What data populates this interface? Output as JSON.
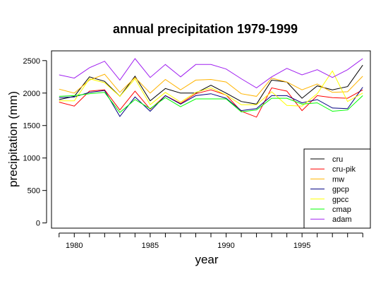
{
  "chart_data": {
    "type": "line",
    "title": "annual precipitation 1979-1999",
    "xlabel": "year",
    "ylabel": "precipitation (mm)",
    "xlim": [
      1978.5,
      1999.5
    ],
    "ylim": [
      -80,
      2650
    ],
    "x_ticks": [
      1980,
      1985,
      1990,
      1995
    ],
    "y_ticks": [
      0,
      500,
      1000,
      1500,
      2000,
      2500
    ],
    "grid": false,
    "legend_position": "bottom-right",
    "x": [
      1979,
      1980,
      1981,
      1982,
      1983,
      1984,
      1985,
      1986,
      1987,
      1988,
      1989,
      1990,
      1991,
      1992,
      1993,
      1994,
      1995,
      1996,
      1997,
      1998,
      1999
    ],
    "series": [
      {
        "name": "cru",
        "color": "#000000",
        "values": [
          1900,
          1950,
          2250,
          2180,
          1950,
          2260,
          1880,
          2070,
          2000,
          2000,
          2120,
          2000,
          1870,
          1830,
          2200,
          2170,
          1920,
          2110,
          2050,
          2100,
          2430
        ]
      },
      {
        "name": "cru-pik",
        "color": "#ff0000",
        "values": [
          1860,
          1800,
          2030,
          2050,
          1740,
          2030,
          1750,
          1960,
          1840,
          1990,
          2050,
          1970,
          1720,
          1630,
          2080,
          2030,
          1730,
          1960,
          1930,
          1920,
          2050
        ]
      },
      {
        "name": "mw",
        "color": "#ffb400",
        "values": [
          2060,
          2000,
          2200,
          2290,
          2010,
          2240,
          2000,
          2210,
          2050,
          2200,
          2210,
          2170,
          1990,
          1950,
          2230,
          2170,
          2050,
          2140,
          2010,
          2020,
          2260
        ]
      },
      {
        "name": "gpcp",
        "color": "#000080",
        "values": [
          1930,
          1940,
          2010,
          2040,
          1640,
          1940,
          1720,
          1960,
          1830,
          1960,
          1990,
          1920,
          1730,
          1760,
          1960,
          1960,
          1850,
          1900,
          1770,
          1760,
          2090
        ]
      },
      {
        "name": "gpcc",
        "color": "#ffff00",
        "values": [
          1880,
          1880,
          2220,
          2160,
          1950,
          2220,
          1820,
          2010,
          1860,
          2010,
          2080,
          1970,
          1820,
          1820,
          2020,
          1810,
          1800,
          1990,
          2340,
          1870,
          2000
        ]
      },
      {
        "name": "cmap",
        "color": "#00ff00",
        "values": [
          1950,
          1960,
          1990,
          2010,
          1700,
          1900,
          1760,
          1930,
          1790,
          1910,
          1910,
          1910,
          1710,
          1740,
          1920,
          1920,
          1830,
          1850,
          1720,
          1740,
          1960
        ]
      },
      {
        "name": "adam",
        "color": "#a020f0",
        "values": [
          2280,
          2230,
          2390,
          2490,
          2200,
          2530,
          2240,
          2440,
          2250,
          2440,
          2440,
          2370,
          2220,
          2080,
          2250,
          2380,
          2280,
          2360,
          2240,
          2360,
          2530
        ]
      }
    ]
  }
}
